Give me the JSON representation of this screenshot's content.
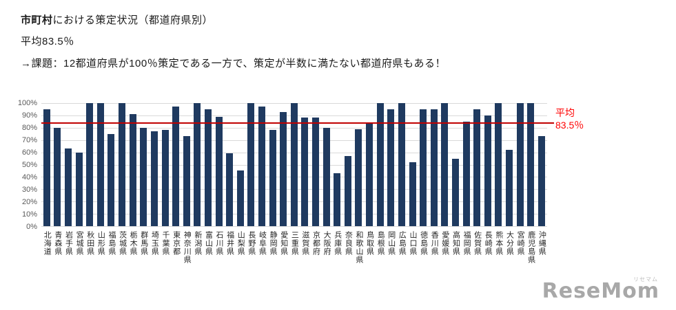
{
  "header": {
    "title_bold": "市町村",
    "title_rest": "における策定状況（都道府県別）",
    "subtitle": "平均83.5％",
    "note": "→課題：12都道府県が100％策定である一方で、策定が半数に満たない都道府県もある！"
  },
  "chart_data": {
    "type": "bar",
    "title": "市町村における策定状況（都道府県別）",
    "xlabel": "",
    "ylabel": "",
    "ylim": [
      0,
      100
    ],
    "grid": true,
    "y_ticks": [
      "100%",
      "90%",
      "80%",
      "70%",
      "60%",
      "50%",
      "40%",
      "30%",
      "20%",
      "10%",
      "0%"
    ],
    "categories": [
      "北海道",
      "青森県",
      "岩手県",
      "宮城県",
      "秋田県",
      "山形県",
      "福島県",
      "茨城県",
      "栃木県",
      "群馬県",
      "埼玉県",
      "千葉県",
      "東京都",
      "神奈川県",
      "新潟県",
      "富山県",
      "石川県",
      "福井県",
      "山梨県",
      "長野県",
      "岐阜県",
      "静岡県",
      "愛知県",
      "三重県",
      "滋賀県",
      "京都府",
      "大阪府",
      "兵庫県",
      "奈良県",
      "和歌山県",
      "鳥取県",
      "島根県",
      "岡山県",
      "広島県",
      "山口県",
      "徳島県",
      "香川県",
      "愛媛県",
      "高知県",
      "福岡県",
      "佐賀県",
      "長崎県",
      "熊本県",
      "大分県",
      "宮崎県",
      "鹿児島県",
      "沖縄県"
    ],
    "values": [
      95,
      80,
      63,
      60,
      100,
      100,
      75,
      100,
      91,
      80,
      77,
      78,
      97,
      73,
      100,
      95,
      89,
      59,
      45,
      100,
      97,
      78,
      93,
      100,
      88,
      88,
      80,
      43,
      57,
      79,
      84,
      100,
      95,
      100,
      52,
      95,
      95,
      100,
      55,
      85,
      95,
      90,
      100,
      62,
      100,
      100,
      73
    ],
    "average": 83.5,
    "average_label_line1": "平均",
    "average_label_line2": "83.5％",
    "bar_color": "#1f3a60",
    "average_line_color": "#c00000",
    "average_label_color": "#ff0000",
    "gridline_color": "#d9d9d9"
  },
  "footer": {
    "logo_main": "ReseMom",
    "logo_sub": "リセマム"
  }
}
